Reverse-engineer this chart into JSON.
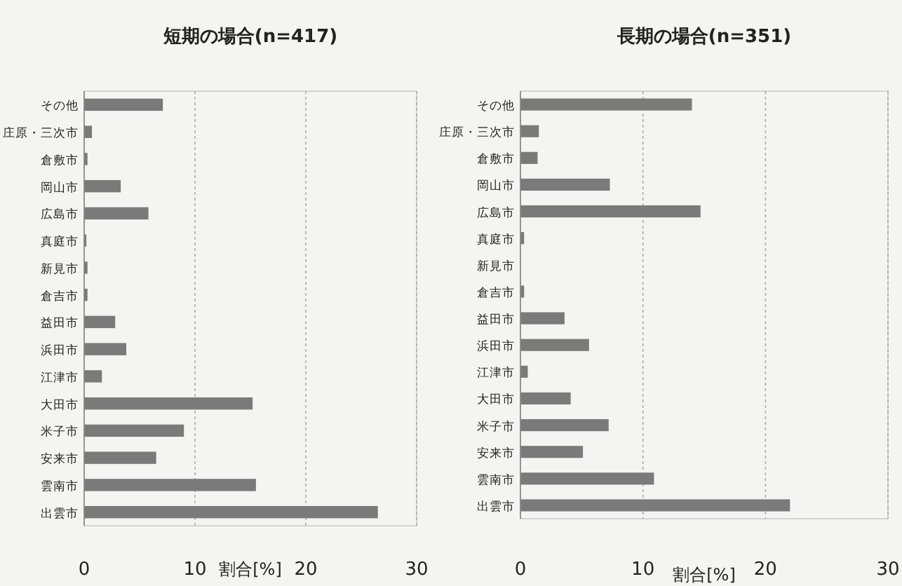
{
  "chart_data": [
    {
      "type": "bar",
      "orientation": "horizontal",
      "title": "短期の場合(n=417)",
      "xlabel": "割合[%]",
      "categories": [
        "その他",
        "庄原・三次市",
        "倉敷市",
        "岡山市",
        "広島市",
        "真庭市",
        "新見市",
        "倉吉市",
        "益田市",
        "浜田市",
        "江津市",
        "大田市",
        "米子市",
        "安来市",
        "雲南市",
        "出雲市"
      ],
      "values": [
        7.1,
        0.7,
        0.3,
        3.3,
        5.8,
        0.2,
        0.3,
        0.3,
        2.8,
        3.8,
        1.6,
        15.2,
        9.0,
        6.5,
        15.5,
        26.5
      ],
      "color": "#7a7a7a",
      "xlim": [
        0,
        30
      ],
      "xticks": [
        0,
        10,
        20,
        30
      ],
      "grid": "x"
    },
    {
      "type": "bar",
      "orientation": "horizontal",
      "title": "長期の場合(n=351)",
      "xlabel": "割合[%]",
      "categories": [
        "その他",
        "庄原・三次市",
        "倉敷市",
        "岡山市",
        "広島市",
        "真庭市",
        "新見市",
        "倉吉市",
        "益田市",
        "浜田市",
        "江津市",
        "大田市",
        "米子市",
        "安来市",
        "雲南市",
        "出雲市"
      ],
      "values": [
        14.0,
        1.5,
        1.4,
        7.3,
        14.7,
        0.3,
        0,
        0.3,
        3.6,
        5.6,
        0.6,
        4.1,
        7.2,
        5.1,
        10.9,
        22.0
      ],
      "color": "#7a7a7a",
      "xlim": [
        0,
        30
      ],
      "xticks": [
        0,
        10,
        20,
        30
      ],
      "grid": "x"
    }
  ]
}
